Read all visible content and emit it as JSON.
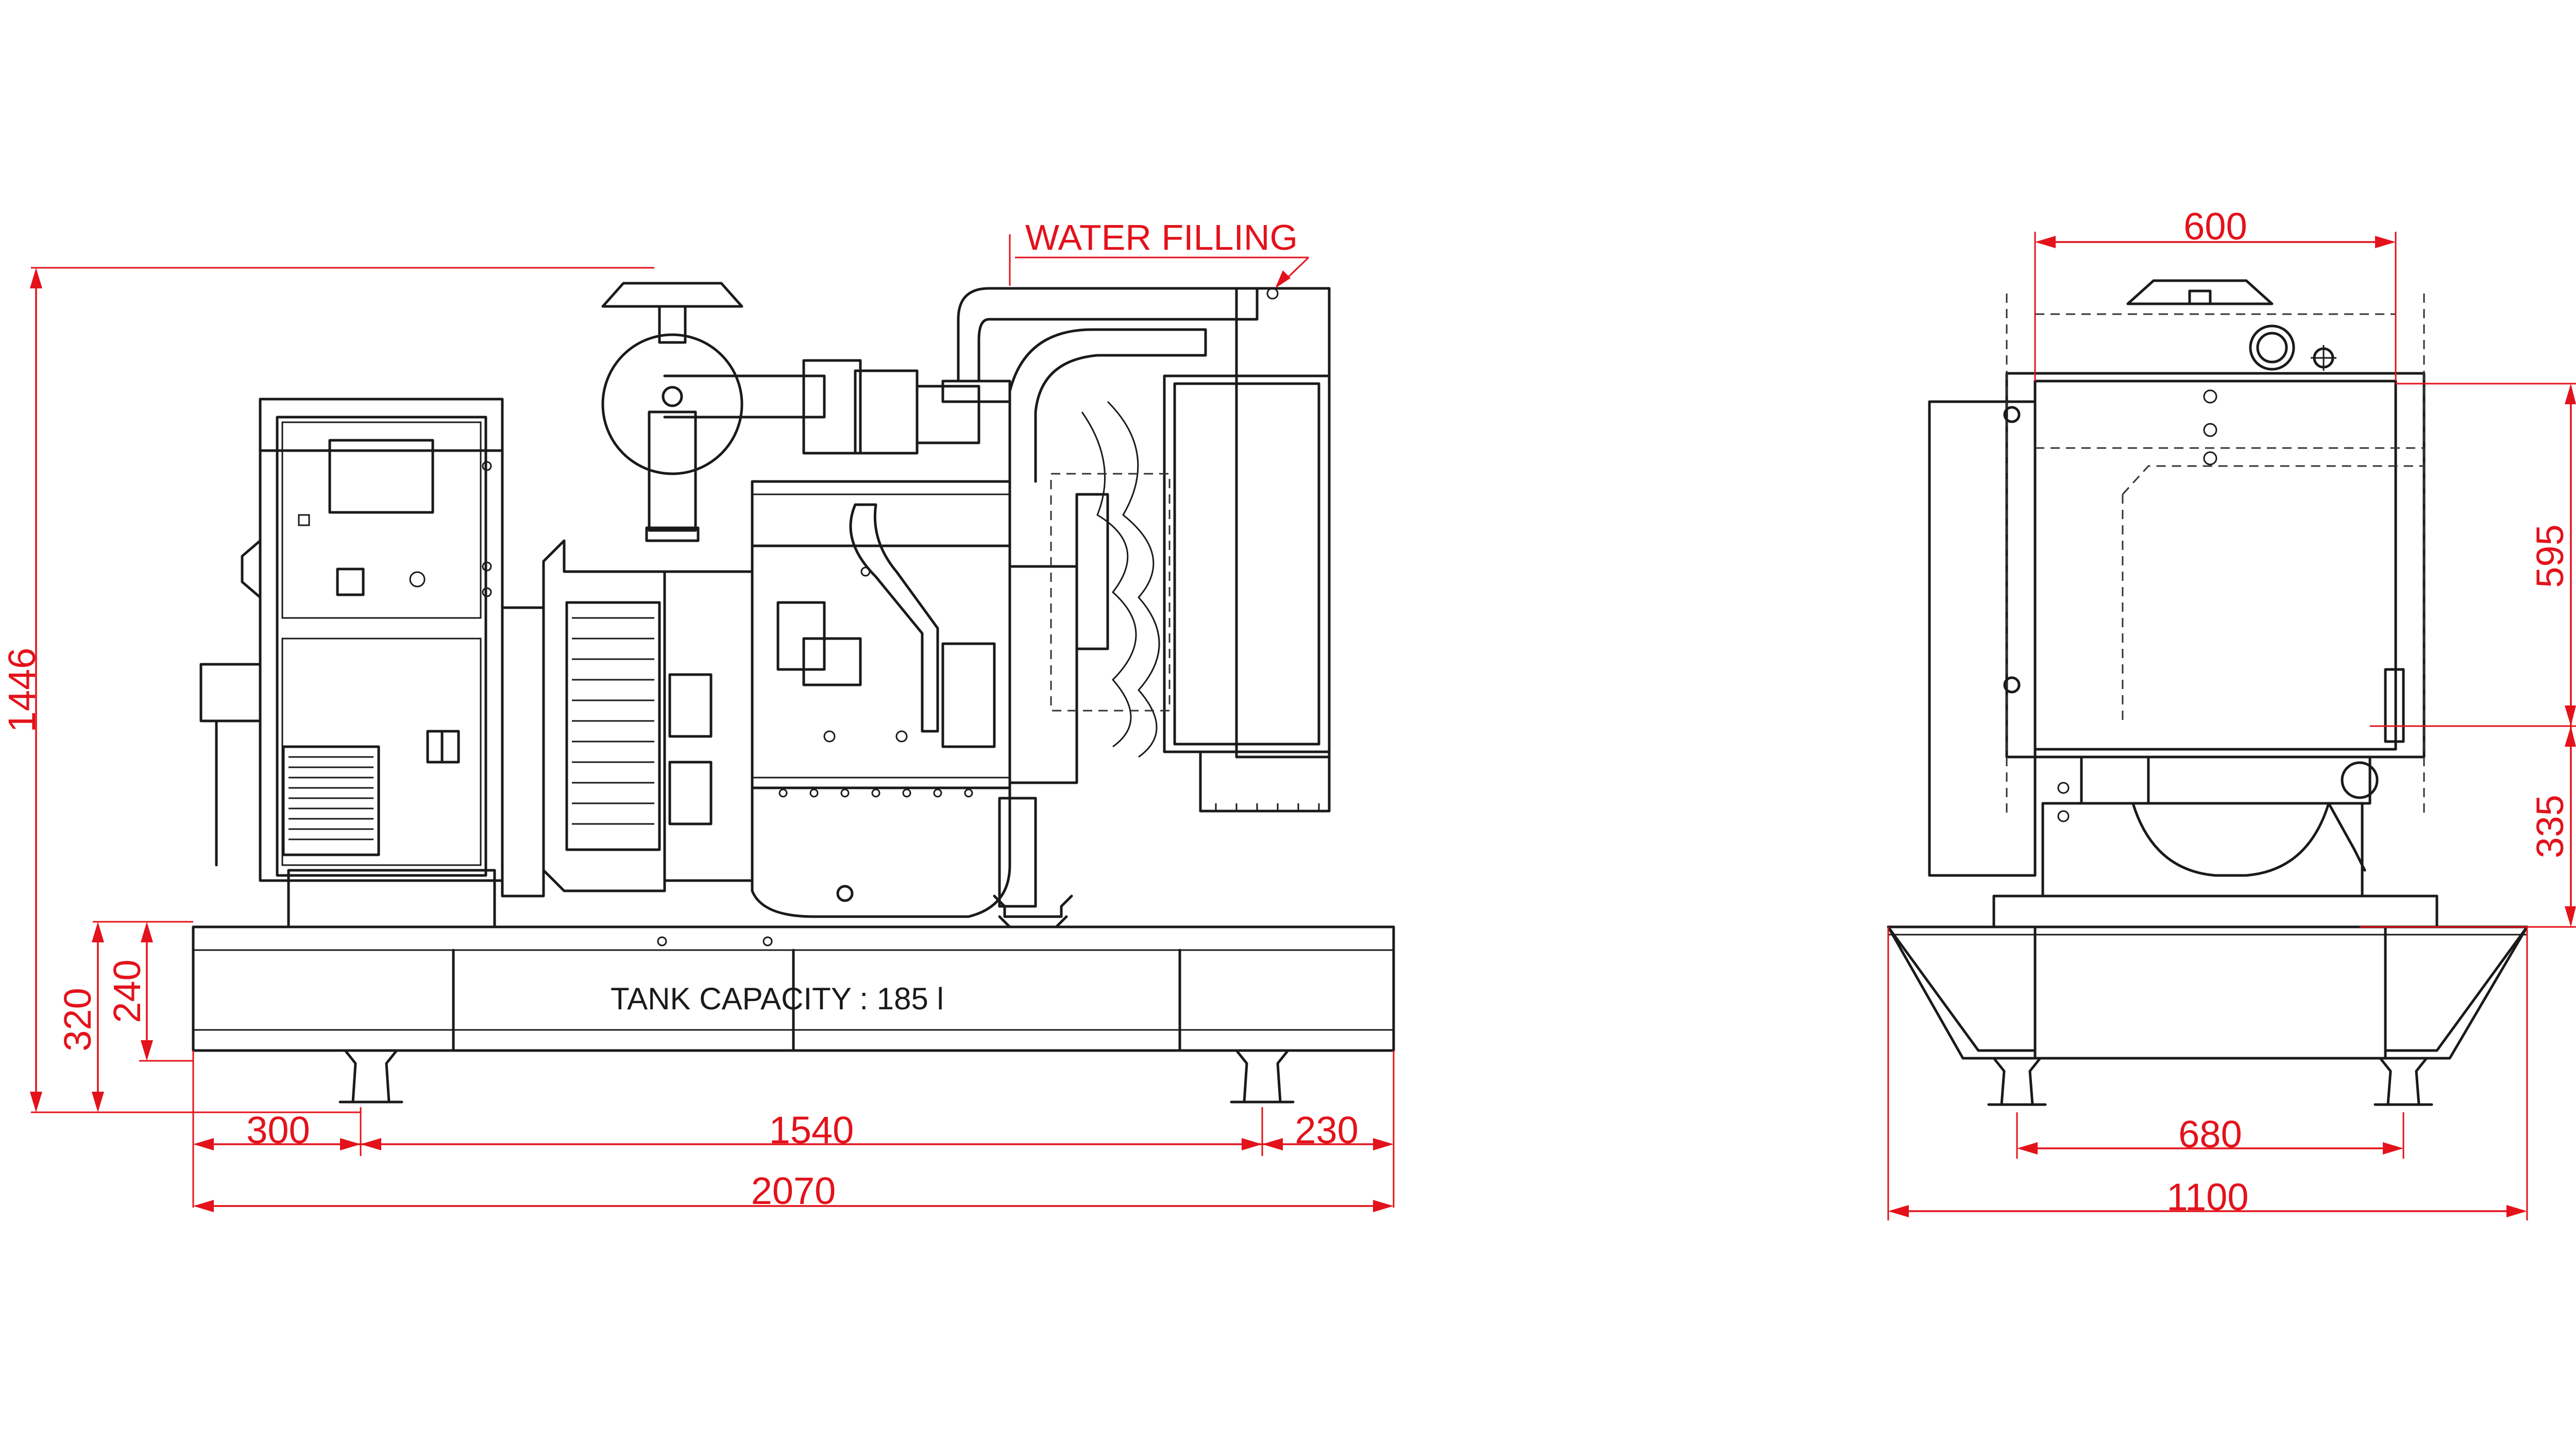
{
  "side_view": {
    "tank_label": "TANK CAPACITY : 185 l",
    "water_filling_label": "WATER FILLING",
    "dimensions": {
      "overall_height": "1446",
      "base_height": "320",
      "tank_height": "240",
      "left_offset": "300",
      "mount_spacing": "1540",
      "right_offset": "230",
      "overall_length": "2070"
    }
  },
  "front_view": {
    "dimensions": {
      "radiator_width": "600",
      "radiator_height": "595",
      "lower_height": "335",
      "mount_spacing": "680",
      "overall_width": "1100"
    }
  },
  "colors": {
    "outline": "#1a1a1a",
    "dimension": "#e3121b",
    "background": "#ffffff"
  }
}
